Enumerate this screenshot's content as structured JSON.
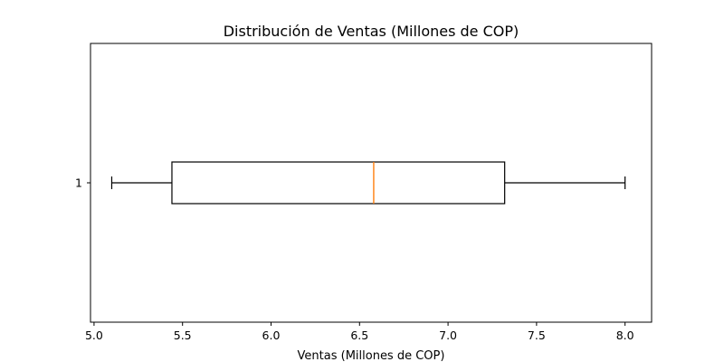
{
  "chart_data": {
    "type": "boxplot",
    "orientation": "horizontal",
    "title": "Distribución de Ventas (Millones de COP)",
    "xlabel": "Ventas (Millones de COP)",
    "ylabel": "",
    "xlim": [
      4.98,
      8.15
    ],
    "x_ticks": [
      5.0,
      5.5,
      6.0,
      6.5,
      7.0,
      7.5,
      8.0
    ],
    "x_tick_labels": [
      "5.0",
      "5.5",
      "6.0",
      "6.5",
      "7.0",
      "7.5",
      "8.0"
    ],
    "categories": [
      "1"
    ],
    "boxes": [
      {
        "label": "1",
        "whisker_low": 5.1,
        "q1": 5.44,
        "median": 6.58,
        "q3": 7.32,
        "whisker_high": 8.0
      }
    ],
    "grid": false,
    "colors": {
      "box": "#000000",
      "median": "#ff7f0e",
      "whisker": "#000000",
      "axes": "#000000"
    }
  }
}
